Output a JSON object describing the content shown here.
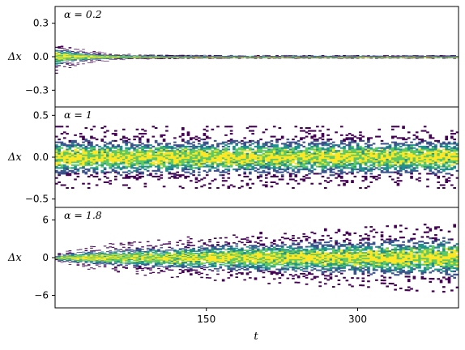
{
  "chart_data": {
    "type": "heatmap",
    "description_kind": "stacked 2D histograms of Δx versus t",
    "xlabel": "t",
    "xticks": [
      150,
      300
    ],
    "xlim": [
      0,
      400
    ],
    "colormap": [
      "#440154",
      "#3b528b",
      "#21918c",
      "#5ec962",
      "#fde725"
    ],
    "panels": [
      {
        "label": "α = 0.2",
        "alpha": 0.2,
        "ylabel": "Δx",
        "ylim": [
          -0.45,
          0.45
        ],
        "yticks": [
          -0.3,
          0.0,
          0.3
        ],
        "ytick_labels": [
          "−0.3",
          "0.0",
          "0.3"
        ],
        "spread_start": 0.12,
        "spread_end": 0.012,
        "shape": "narrowing"
      },
      {
        "label": "α = 1",
        "alpha": 1,
        "ylabel": "Δx",
        "ylim": [
          -0.6,
          0.6
        ],
        "yticks": [
          -0.5,
          0.0,
          0.5
        ],
        "ytick_labels": [
          "−0.5",
          "0.0",
          "0.5"
        ],
        "spread_start": 0.3,
        "spread_end": 0.3,
        "shape": "constant"
      },
      {
        "label": "α = 1.8",
        "alpha": 1.8,
        "ylabel": "Δx",
        "ylim": [
          -8,
          8
        ],
        "yticks": [
          -6,
          0,
          6
        ],
        "ytick_labels": [
          "−6",
          "0",
          "6"
        ],
        "spread_start": 0.3,
        "spread_end": 4.5,
        "shape": "widening"
      }
    ]
  }
}
